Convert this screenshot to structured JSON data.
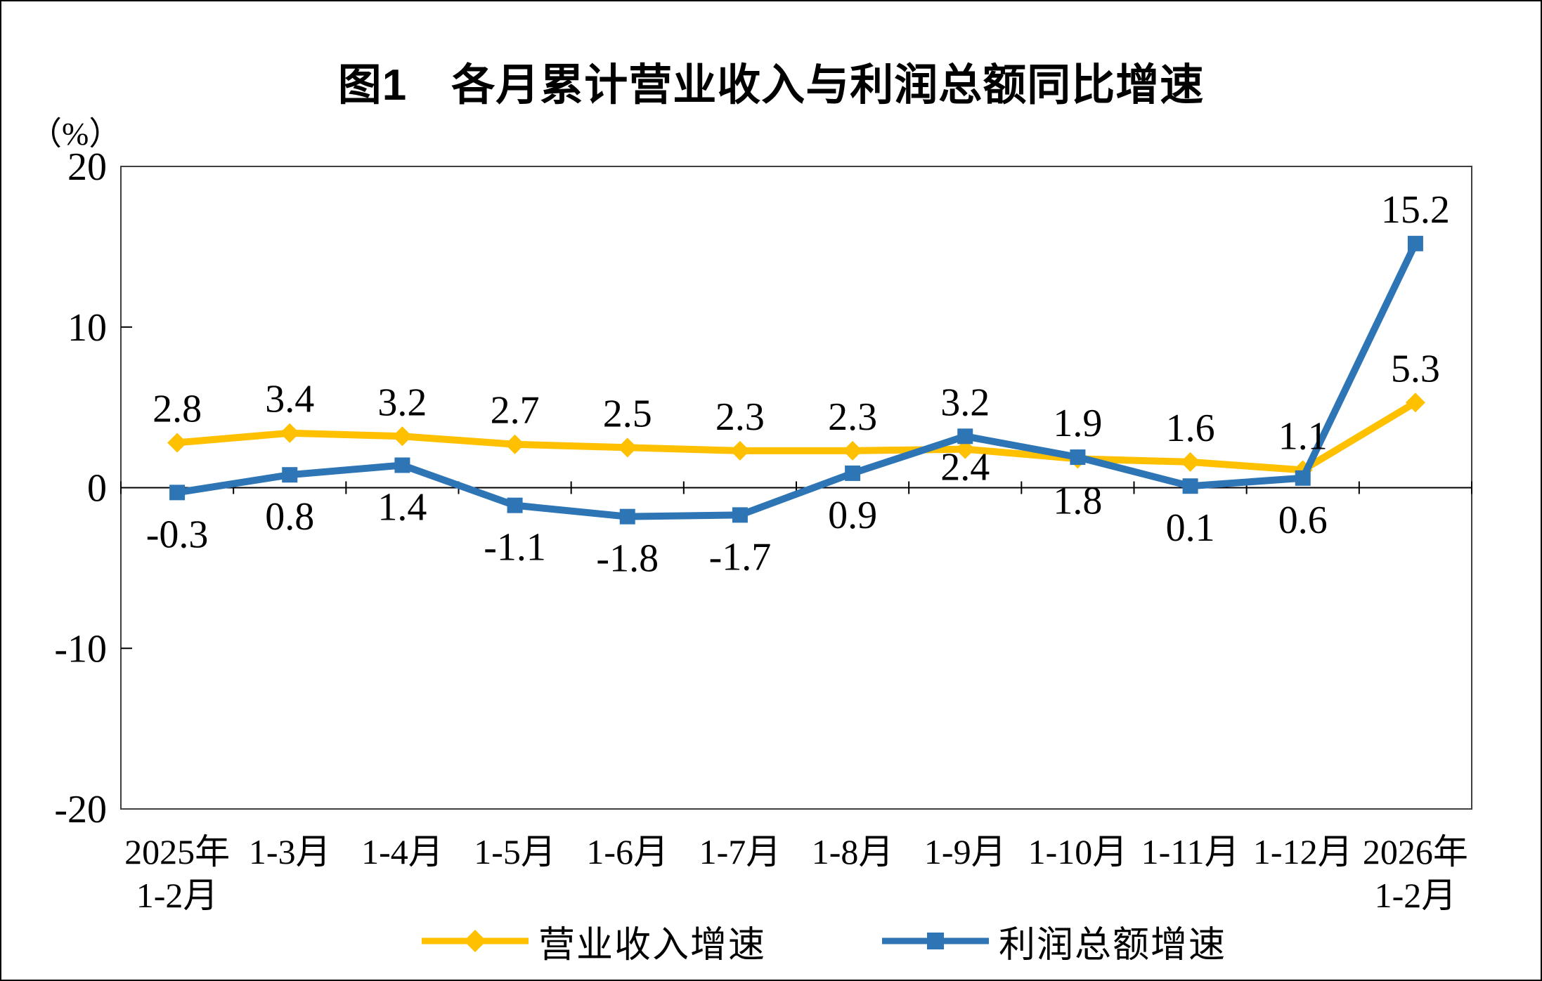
{
  "figure": {
    "title": "图1　各月累计营业收入与利润总额同比增速",
    "y_unit_label": "（%）"
  },
  "colors": {
    "revenue_series": "#FFC000",
    "profit_series": "#2E75B6",
    "axis": "#000000",
    "plot_border": "#404040",
    "background": "#FFFFFF"
  },
  "chart_data": {
    "type": "line",
    "title": "图1　各月累计营业收入与利润总额同比增速",
    "y_axis": {
      "unit": "（%）",
      "min": -20,
      "max": 20,
      "tick_step": 10,
      "tick_labels": [
        "20",
        "10",
        "0",
        "-10",
        "-20"
      ]
    },
    "grid": false,
    "legend_position": "bottom",
    "categories": [
      [
        "2025年",
        "1-2月"
      ],
      [
        "1-3月"
      ],
      [
        "1-4月"
      ],
      [
        "1-5月"
      ],
      [
        "1-6月"
      ],
      [
        "1-7月"
      ],
      [
        "1-8月"
      ],
      [
        "1-9月"
      ],
      [
        "1-10月"
      ],
      [
        "1-11月"
      ],
      [
        "1-12月"
      ],
      [
        "2026年",
        "1-2月"
      ]
    ],
    "series": [
      {
        "name": "营业收入增速",
        "color": "#FFC000",
        "marker": "diamond",
        "values": [
          2.8,
          3.4,
          3.2,
          2.7,
          2.5,
          2.3,
          2.3,
          2.4,
          1.8,
          1.6,
          1.1,
          5.3
        ],
        "label_default_side": "above",
        "label_side_overrides": {
          "7": "below",
          "8": "below"
        },
        "label_dy_overrides": {
          "7": 44
        }
      },
      {
        "name": "利润总额增速",
        "color": "#2E75B6",
        "marker": "square",
        "values": [
          -0.3,
          0.8,
          1.4,
          -1.1,
          -1.8,
          -1.7,
          0.9,
          3.2,
          1.9,
          0.1,
          0.6,
          15.2
        ],
        "label_default_side": "below",
        "label_side_overrides": {
          "7": "above",
          "8": "above",
          "11": "above"
        }
      }
    ]
  }
}
